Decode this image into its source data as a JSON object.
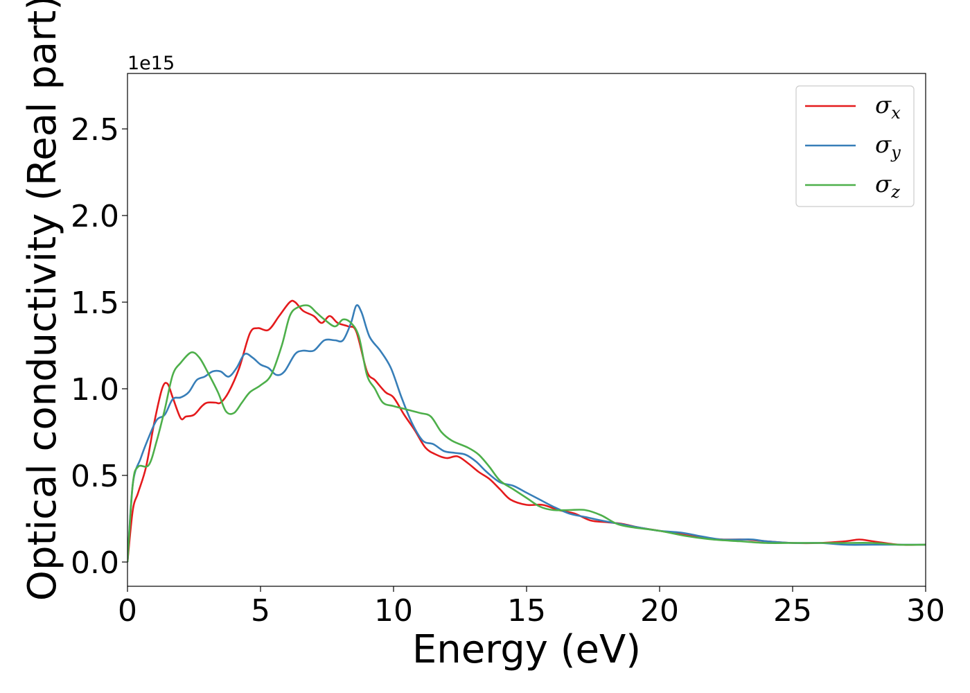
{
  "chart_data": {
    "type": "line",
    "title": "",
    "xlabel": "Energy (eV)",
    "ylabel": "Optical conductivity (Real part)",
    "y_offset_label": "1e15",
    "xlim": [
      0,
      30
    ],
    "ylim": [
      -0.14,
      2.82
    ],
    "y_scale_factor": 1000000000000000.0,
    "grid": false,
    "legend_position": "top-right",
    "x_ticks": [
      0,
      5,
      10,
      15,
      20,
      25,
      30
    ],
    "x_tick_labels": [
      "0",
      "5",
      "10",
      "15",
      "20",
      "25",
      "30"
    ],
    "y_ticks": [
      0.0,
      0.5,
      1.0,
      1.5,
      2.0,
      2.5
    ],
    "y_tick_labels": [
      "0.0",
      "0.5",
      "1.0",
      "1.5",
      "2.0",
      "2.5"
    ],
    "series": [
      {
        "name": "σx",
        "symbol": "σ",
        "subscript": "x",
        "color": "#e41a1c",
        "x": [
          0,
          0.2,
          0.4,
          0.7,
          1.0,
          1.3,
          1.5,
          1.7,
          2.0,
          2.2,
          2.5,
          2.8,
          3.0,
          3.3,
          3.5,
          3.8,
          4.2,
          4.6,
          4.9,
          5.3,
          5.7,
          6.1,
          6.3,
          6.6,
          7.0,
          7.3,
          7.6,
          7.9,
          8.3,
          8.6,
          9.0,
          9.3,
          9.7,
          10.0,
          10.4,
          10.8,
          11.2,
          11.6,
          12.0,
          12.4,
          12.8,
          13.2,
          13.6,
          14.0,
          14.4,
          15.0,
          15.6,
          16.2,
          16.8,
          17.4,
          18.0,
          18.6,
          19.2,
          20.0,
          20.8,
          21.6,
          22.4,
          23.2,
          24.0,
          25.0,
          26.0,
          27.0,
          27.5,
          28.0,
          29.0,
          30.0
        ],
        "y": [
          0.0,
          0.3,
          0.4,
          0.55,
          0.8,
          1.0,
          1.03,
          0.95,
          0.83,
          0.84,
          0.85,
          0.9,
          0.92,
          0.92,
          0.92,
          0.98,
          1.12,
          1.32,
          1.35,
          1.34,
          1.42,
          1.5,
          1.5,
          1.45,
          1.42,
          1.38,
          1.42,
          1.38,
          1.36,
          1.33,
          1.1,
          1.05,
          0.98,
          0.95,
          0.85,
          0.76,
          0.66,
          0.62,
          0.6,
          0.61,
          0.57,
          0.52,
          0.48,
          0.42,
          0.36,
          0.33,
          0.33,
          0.3,
          0.28,
          0.24,
          0.23,
          0.22,
          0.2,
          0.18,
          0.16,
          0.14,
          0.13,
          0.13,
          0.12,
          0.11,
          0.11,
          0.12,
          0.13,
          0.12,
          0.1,
          0.1
        ]
      },
      {
        "name": "σy",
        "symbol": "σ",
        "subscript": "y",
        "color": "#377eb8",
        "x": [
          0,
          0.2,
          0.5,
          0.8,
          1.1,
          1.4,
          1.7,
          2.0,
          2.3,
          2.6,
          2.9,
          3.2,
          3.5,
          3.8,
          4.1,
          4.4,
          4.7,
          5.0,
          5.3,
          5.6,
          5.9,
          6.3,
          6.6,
          7.0,
          7.4,
          7.8,
          8.1,
          8.4,
          8.6,
          8.8,
          9.1,
          9.5,
          9.9,
          10.3,
          10.7,
          11.1,
          11.5,
          11.9,
          12.3,
          12.7,
          13.1,
          13.5,
          14.0,
          14.5,
          15.0,
          15.5,
          16.0,
          16.6,
          17.2,
          17.8,
          18.5,
          19.2,
          20.0,
          20.8,
          21.5,
          22.3,
          23.0,
          23.5,
          24.0,
          25.0,
          26.0,
          27.0,
          28.0,
          29.0,
          30.0
        ],
        "y": [
          0.0,
          0.45,
          0.6,
          0.72,
          0.82,
          0.85,
          0.94,
          0.95,
          0.98,
          1.05,
          1.07,
          1.1,
          1.1,
          1.07,
          1.12,
          1.2,
          1.18,
          1.14,
          1.12,
          1.08,
          1.1,
          1.2,
          1.22,
          1.22,
          1.28,
          1.28,
          1.28,
          1.38,
          1.48,
          1.44,
          1.3,
          1.22,
          1.12,
          0.95,
          0.8,
          0.7,
          0.68,
          0.64,
          0.63,
          0.62,
          0.58,
          0.52,
          0.46,
          0.44,
          0.4,
          0.36,
          0.32,
          0.28,
          0.26,
          0.24,
          0.22,
          0.2,
          0.18,
          0.17,
          0.15,
          0.13,
          0.13,
          0.13,
          0.12,
          0.11,
          0.11,
          0.1,
          0.1,
          0.1,
          0.1
        ]
      },
      {
        "name": "σz",
        "symbol": "σ",
        "subscript": "z",
        "color": "#4daf4a",
        "x": [
          0,
          0.2,
          0.4,
          0.8,
          1.1,
          1.4,
          1.7,
          2.0,
          2.4,
          2.7,
          3.0,
          3.4,
          3.7,
          4.0,
          4.3,
          4.6,
          5.0,
          5.4,
          5.8,
          6.1,
          6.4,
          6.8,
          7.1,
          7.4,
          7.8,
          8.1,
          8.4,
          8.7,
          9.0,
          9.3,
          9.6,
          10.0,
          10.5,
          11.0,
          11.4,
          11.8,
          12.2,
          12.8,
          13.2,
          13.6,
          14.0,
          14.5,
          15.0,
          15.5,
          16.0,
          16.6,
          17.2,
          17.8,
          18.4,
          19.0,
          20.0,
          21.0,
          22.0,
          23.0,
          24.0,
          25.0,
          26.0,
          27.0,
          28.0,
          29.0,
          30.0
        ],
        "y": [
          0.0,
          0.45,
          0.55,
          0.56,
          0.7,
          0.88,
          1.08,
          1.15,
          1.21,
          1.18,
          1.1,
          0.98,
          0.87,
          0.86,
          0.92,
          0.98,
          1.02,
          1.08,
          1.25,
          1.42,
          1.47,
          1.48,
          1.44,
          1.4,
          1.36,
          1.4,
          1.38,
          1.3,
          1.08,
          1.0,
          0.92,
          0.9,
          0.88,
          0.86,
          0.84,
          0.75,
          0.7,
          0.66,
          0.62,
          0.55,
          0.47,
          0.42,
          0.37,
          0.32,
          0.3,
          0.3,
          0.3,
          0.27,
          0.22,
          0.2,
          0.18,
          0.15,
          0.13,
          0.12,
          0.11,
          0.11,
          0.11,
          0.11,
          0.11,
          0.1,
          0.1
        ]
      }
    ]
  }
}
